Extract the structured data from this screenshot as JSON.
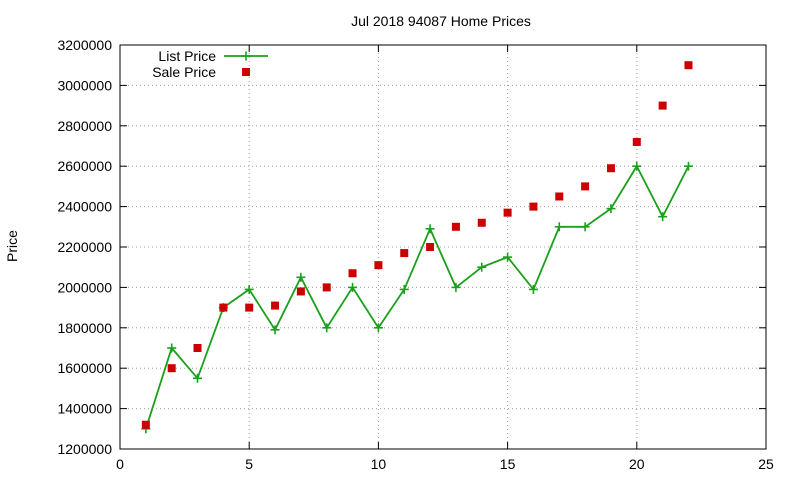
{
  "chart_data": {
    "type": "line",
    "title": "Jul 2018 94087 Home Prices",
    "xlabel": "",
    "ylabel": "Price",
    "xlim": [
      0,
      25
    ],
    "ylim": [
      1200000,
      3200000
    ],
    "xticks": [
      "0",
      "5",
      "10",
      "15",
      "20",
      "25"
    ],
    "yticks": [
      "1200000",
      "1400000",
      "1600000",
      "1800000",
      "2000000",
      "2200000",
      "2400000",
      "2600000",
      "2800000",
      "3000000",
      "3200000"
    ],
    "grid": true,
    "legend_position": "top-left",
    "series": [
      {
        "name": "List Price",
        "style": "line+cross",
        "color": "#1aa01a",
        "x": [
          1,
          2,
          3,
          4,
          5,
          6,
          7,
          8,
          9,
          10,
          11,
          12,
          13,
          14,
          15,
          16,
          17,
          18,
          19,
          20,
          21,
          22
        ],
        "y": [
          1300000,
          1700000,
          1550000,
          1900000,
          1990000,
          1790000,
          2050000,
          1800000,
          2000000,
          1800000,
          1990000,
          2290000,
          2000000,
          2100000,
          2150000,
          1990000,
          2300000,
          2300000,
          2390000,
          2600000,
          2350000,
          2600000
        ]
      },
      {
        "name": "Sale Price",
        "style": "square",
        "color": "#cc0000",
        "x": [
          1,
          2,
          3,
          4,
          5,
          6,
          7,
          8,
          9,
          10,
          11,
          12,
          13,
          14,
          15,
          16,
          17,
          18,
          19,
          20,
          21,
          22
        ],
        "y": [
          1320000,
          1600000,
          1700000,
          1900000,
          1900000,
          1910000,
          1980000,
          2000000,
          2070000,
          2110000,
          2170000,
          2200000,
          2300000,
          2320000,
          2370000,
          2400000,
          2450000,
          2500000,
          2590000,
          2720000,
          2900000,
          3100000
        ]
      }
    ]
  }
}
